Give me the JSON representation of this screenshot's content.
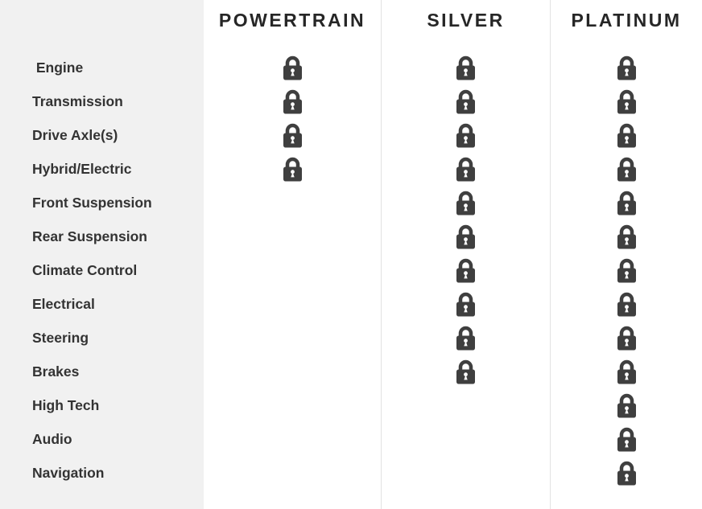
{
  "table": {
    "columns": [
      {
        "label": "POWERTRAIN"
      },
      {
        "label": "SILVER"
      },
      {
        "label": "PLATINUM"
      }
    ],
    "rows": [
      {
        "label": " Engine",
        "coverage": [
          true,
          true,
          true
        ]
      },
      {
        "label": "Transmission",
        "coverage": [
          true,
          true,
          true
        ]
      },
      {
        "label": "Drive Axle(s)",
        "coverage": [
          true,
          true,
          true
        ]
      },
      {
        "label": "Hybrid/Electric",
        "coverage": [
          true,
          true,
          true
        ]
      },
      {
        "label": "Front Suspension",
        "coverage": [
          false,
          true,
          true
        ]
      },
      {
        "label": "Rear Suspension",
        "coverage": [
          false,
          true,
          true
        ]
      },
      {
        "label": "Climate Control",
        "coverage": [
          false,
          true,
          true
        ]
      },
      {
        "label": "Electrical",
        "coverage": [
          false,
          true,
          true
        ]
      },
      {
        "label": "Steering",
        "coverage": [
          false,
          true,
          true
        ]
      },
      {
        "label": "Brakes",
        "coverage": [
          false,
          true,
          true
        ]
      },
      {
        "label": "High Tech",
        "coverage": [
          false,
          false,
          true
        ]
      },
      {
        "label": "Audio",
        "coverage": [
          false,
          false,
          true
        ]
      },
      {
        "label": "Navigation",
        "coverage": [
          false,
          false,
          true
        ]
      }
    ],
    "covered_icon": "lock-icon"
  },
  "colors": {
    "sidebar_background": "#f1f1f1",
    "column_divider": "#e2e2e2",
    "header_text": "#262626",
    "label_text": "#333333",
    "lock_icon": "#3f3f3f"
  }
}
